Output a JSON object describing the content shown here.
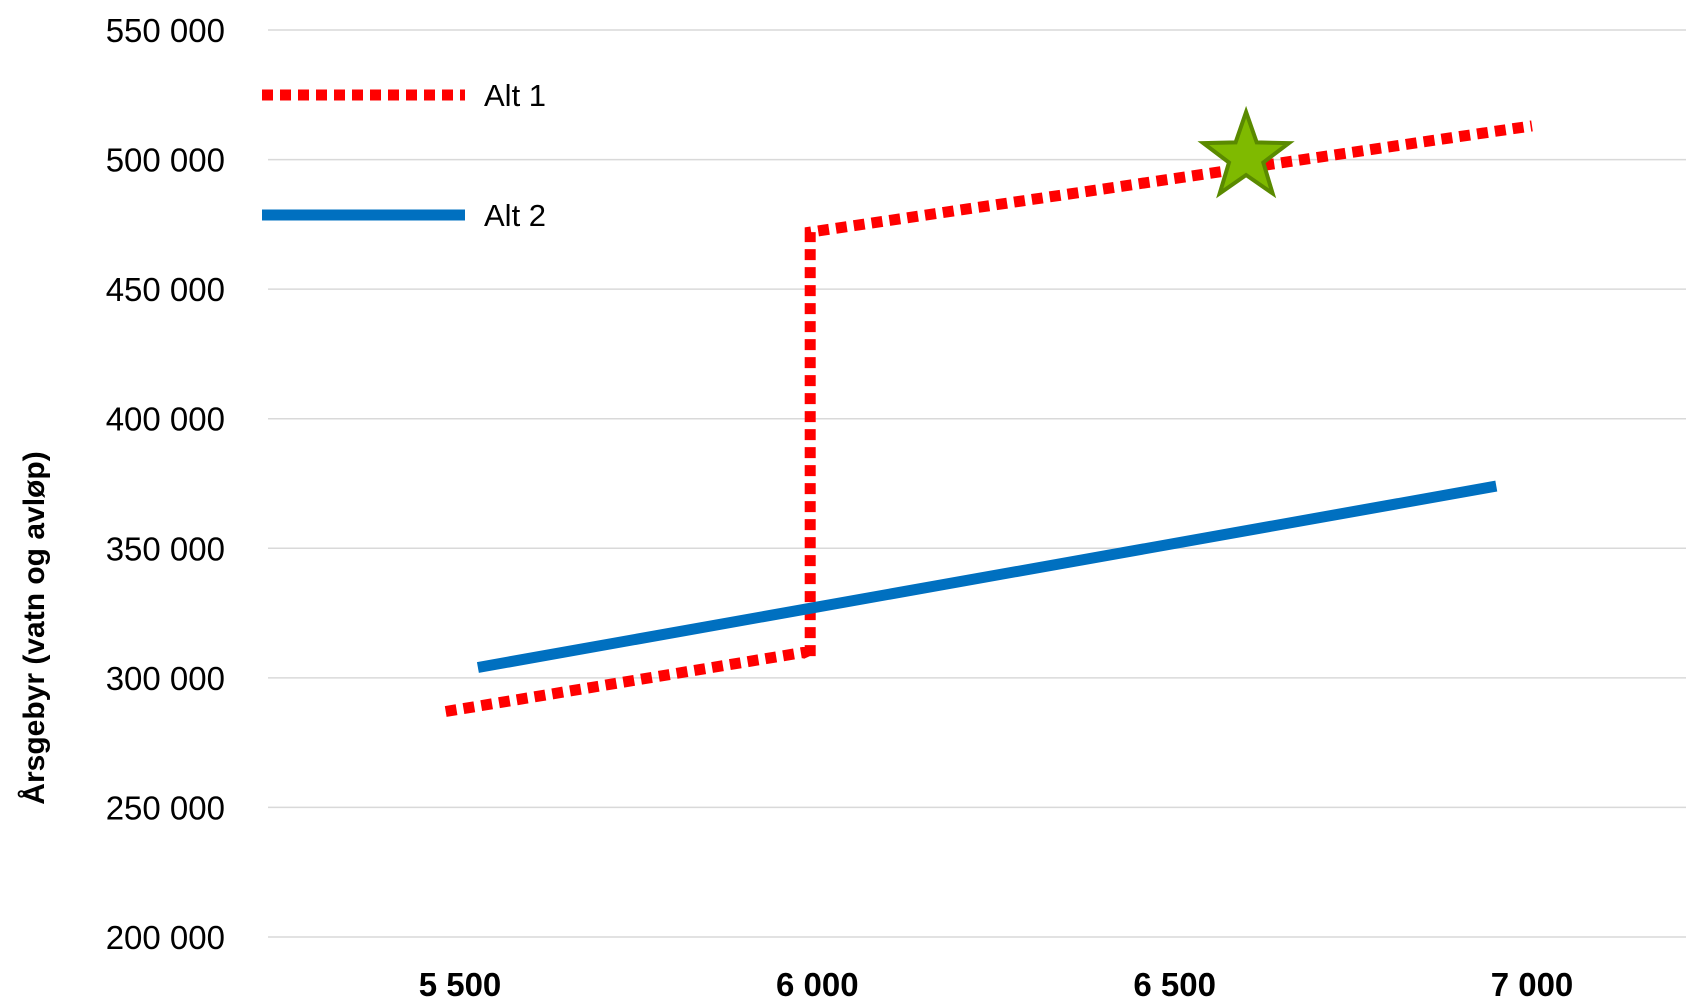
{
  "chart_data": {
    "type": "line",
    "title": "",
    "xlabel": "",
    "ylabel": "Årsgebyr (vatn og avløp)",
    "x_tick_labels": [
      "5 500",
      "6 000",
      "6 500",
      "7 000"
    ],
    "y_tick_labels": [
      "200 000",
      "250 000",
      "300 000",
      "350 000",
      "400 000",
      "450 000",
      "500 000",
      "550 000"
    ],
    "x_ticks": [
      5500,
      6000,
      6500,
      7000
    ],
    "y_ticks": [
      200000,
      250000,
      300000,
      350000,
      400000,
      450000,
      500000,
      550000
    ],
    "ylim": [
      200000,
      550000
    ],
    "grid": "horizontal",
    "legend_position": "top-left",
    "series": [
      {
        "name": "Alt 1",
        "style": "dotted",
        "color": "#ff0000",
        "points": [
          {
            "x": 5480,
            "y": 287000
          },
          {
            "x": 5985,
            "y": 310000
          },
          {
            "x": 5990,
            "y": 307000
          },
          {
            "x": 5990,
            "y": 472000
          },
          {
            "x": 7000,
            "y": 513000
          }
        ]
      },
      {
        "name": "Alt 2",
        "style": "solid",
        "color": "#0070c0",
        "points": [
          {
            "x": 5525,
            "y": 304000
          },
          {
            "x": 6950,
            "y": 374000
          }
        ]
      }
    ],
    "markers": [
      {
        "shape": "star",
        "color": "#7fba00",
        "stroke": "#5a8a00",
        "x": 6600,
        "y": 501000
      }
    ]
  }
}
